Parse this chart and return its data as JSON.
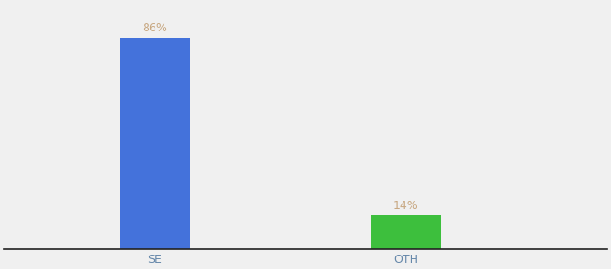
{
  "categories": [
    "SE",
    "OTH"
  ],
  "values": [
    86,
    14
  ],
  "bar_colors": [
    "#4472db",
    "#3dbf3d"
  ],
  "label_color": "#c8a882",
  "label_fontsize": 9,
  "xlabel_fontsize": 9,
  "xlabel_color": "#6688aa",
  "background_color": "#f0f0f0",
  "ylim": [
    0,
    100
  ],
  "bar_width": 0.28,
  "x_positions": [
    1,
    2
  ],
  "xlim": [
    0.4,
    2.8
  ]
}
